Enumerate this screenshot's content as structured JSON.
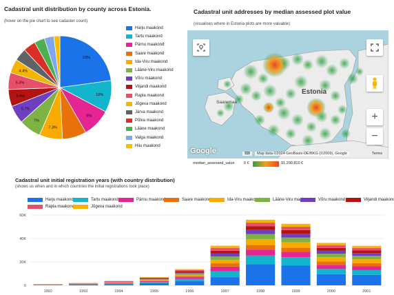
{
  "pie_panel": {
    "title": "Cadastral unit distribution by county across Estonia.",
    "subtitle": "(hover on the pie chart to see cadaster count)"
  },
  "map_panel": {
    "title": "Cadastral unit addresses by median assessed plot value",
    "subtitle": "(visualises where in Estonia plots are more valuable)",
    "labels": {
      "estonia": "Estonia",
      "saaremaa": "Saaremaa"
    },
    "google_logo": "Google",
    "map_data_text": "Map data ©2024 GeoBasis-DE/BKG (©2009), Google",
    "terms_text": "Terms",
    "gradient_label": "median_assessed_value",
    "gradient_min": "0 €",
    "gradient_max": "91,290,810 €",
    "zoom_in": "+",
    "zoom_out": "−"
  },
  "bar_panel": {
    "title": "Cadastral unit initial registration years (with country distribution)",
    "subtitle": "(shows us when and in which countries the initial registrations took place)"
  },
  "counties": [
    {
      "name": "Harju maakond",
      "color": "#1a73e8"
    },
    {
      "name": "Tartu maakond",
      "color": "#12b5cb"
    },
    {
      "name": "Pärnu maakond",
      "color": "#e52592"
    },
    {
      "name": "Saare maakond",
      "color": "#e8710a"
    },
    {
      "name": "Ida-Viru maakond",
      "color": "#f9ab00"
    },
    {
      "name": "Lääne-Viru maakond",
      "color": "#7cb342"
    },
    {
      "name": "Võru maakond",
      "color": "#6f3fc1"
    },
    {
      "name": "Viljandi maakond",
      "color": "#b31412"
    },
    {
      "name": "Rapla maakond",
      "color": "#e8506a"
    },
    {
      "name": "Jõgeva maakond",
      "color": "#f4b400"
    },
    {
      "name": "Järva maakond",
      "color": "#5f6368"
    },
    {
      "name": "Põlva maakond",
      "color": "#d93025"
    },
    {
      "name": "Lääne maakond",
      "color": "#4caf50"
    },
    {
      "name": "Valga maakond",
      "color": "#7ea7f0"
    },
    {
      "name": "Hiiu maakond",
      "color": "#fbbc04"
    }
  ],
  "chart_data": [
    {
      "type": "pie",
      "title": "Cadastral unit distribution by county across Estonia.",
      "slices": [
        {
          "name": "Harju maakond",
          "value": 23,
          "label": "23%"
        },
        {
          "name": "Tartu maakond",
          "value": 10,
          "label": "10%"
        },
        {
          "name": "Pärnu maakond",
          "value": 9,
          "label": "9%"
        },
        {
          "name": "Saare maakond",
          "value": 7.6,
          "label": ""
        },
        {
          "name": "Ida-Viru maakond",
          "value": 7.3,
          "label": "7.3%"
        },
        {
          "name": "Lääne-Viru maakond",
          "value": 7,
          "label": "7%"
        },
        {
          "name": "Võru maakond",
          "value": 5.7,
          "label": "5.7%"
        },
        {
          "name": "Viljandi maakond",
          "value": 5.4,
          "label": "5.4%"
        },
        {
          "name": "Rapla maakond",
          "value": 5.3,
          "label": "5.3%"
        },
        {
          "name": "Jõgeva maakond",
          "value": 4.4,
          "label": "4.4%"
        },
        {
          "name": "Järva maakond",
          "value": 4.0,
          "label": ""
        },
        {
          "name": "Põlva maakond",
          "value": 3.9,
          "label": ""
        },
        {
          "name": "Lääne maakond",
          "value": 3.3,
          "label": ""
        },
        {
          "name": "Valga maakond",
          "value": 3.0,
          "label": ""
        },
        {
          "name": "Hiiu maakond",
          "value": 1.9,
          "label": ""
        }
      ],
      "legend": "right"
    },
    {
      "type": "bar",
      "stacked": true,
      "title": "Cadastral unit initial registration years (with country distribution)",
      "categories": [
        "1992",
        "1993",
        "1994",
        "1995",
        "1996",
        "1997",
        "1998",
        "1999",
        "2000",
        "2001"
      ],
      "yticks": [
        "0",
        "20K",
        "40K",
        "60K"
      ],
      "ylim": [
        0,
        60000
      ],
      "legend": "top",
      "series": [
        {
          "name": "Harju maakond",
          "values": [
            200,
            600,
            1000,
            1800,
            3500,
            7000,
            18000,
            17000,
            9500,
            9000
          ]
        },
        {
          "name": "Tartu maakond",
          "values": [
            150,
            300,
            600,
            1000,
            2000,
            5000,
            7500,
            7000,
            4500,
            4000
          ]
        },
        {
          "name": "Pärnu maakond",
          "values": [
            150,
            200,
            400,
            700,
            1500,
            4000,
            5000,
            4500,
            3500,
            3200
          ]
        },
        {
          "name": "Saare maakond",
          "values": [
            100,
            150,
            300,
            500,
            1000,
            2800,
            4000,
            3500,
            3000,
            2800
          ]
        },
        {
          "name": "Ida-Viru maakond",
          "values": [
            100,
            150,
            300,
            600,
            1100,
            3000,
            5000,
            4800,
            3500,
            3300
          ]
        },
        {
          "name": "Lääne-Viru maakond",
          "values": [
            100,
            150,
            300,
            600,
            1100,
            2800,
            4200,
            4000,
            3000,
            2900
          ]
        },
        {
          "name": "Võru maakond",
          "values": [
            100,
            150,
            250,
            500,
            1000,
            2500,
            3500,
            3200,
            2500,
            2300
          ]
        },
        {
          "name": "Viljandi maakond",
          "values": [
            80,
            120,
            250,
            450,
            900,
            2400,
            3300,
            3100,
            2400,
            2200
          ]
        },
        {
          "name": "Rapla maakond",
          "values": [
            80,
            120,
            250,
            450,
            900,
            2300,
            3000,
            2900,
            2300,
            2100
          ]
        },
        {
          "name": "Jõgeva maakond",
          "values": [
            60,
            100,
            200,
            400,
            800,
            2000,
            2500,
            2500,
            2000,
            1900
          ]
        }
      ]
    }
  ]
}
